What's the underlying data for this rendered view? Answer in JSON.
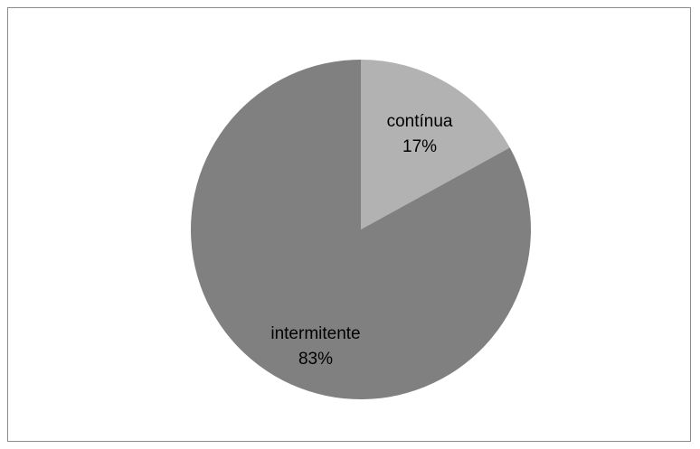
{
  "chart_data": {
    "type": "pie",
    "title": "",
    "slices": [
      {
        "name": "contínua",
        "value": 17,
        "label": "17%",
        "color": "#b2b2b2"
      },
      {
        "name": "intermitente",
        "value": 83,
        "label": "83%",
        "color": "#808080"
      }
    ],
    "start_angle_deg": 0,
    "direction": "clockwise",
    "legend": "none"
  }
}
